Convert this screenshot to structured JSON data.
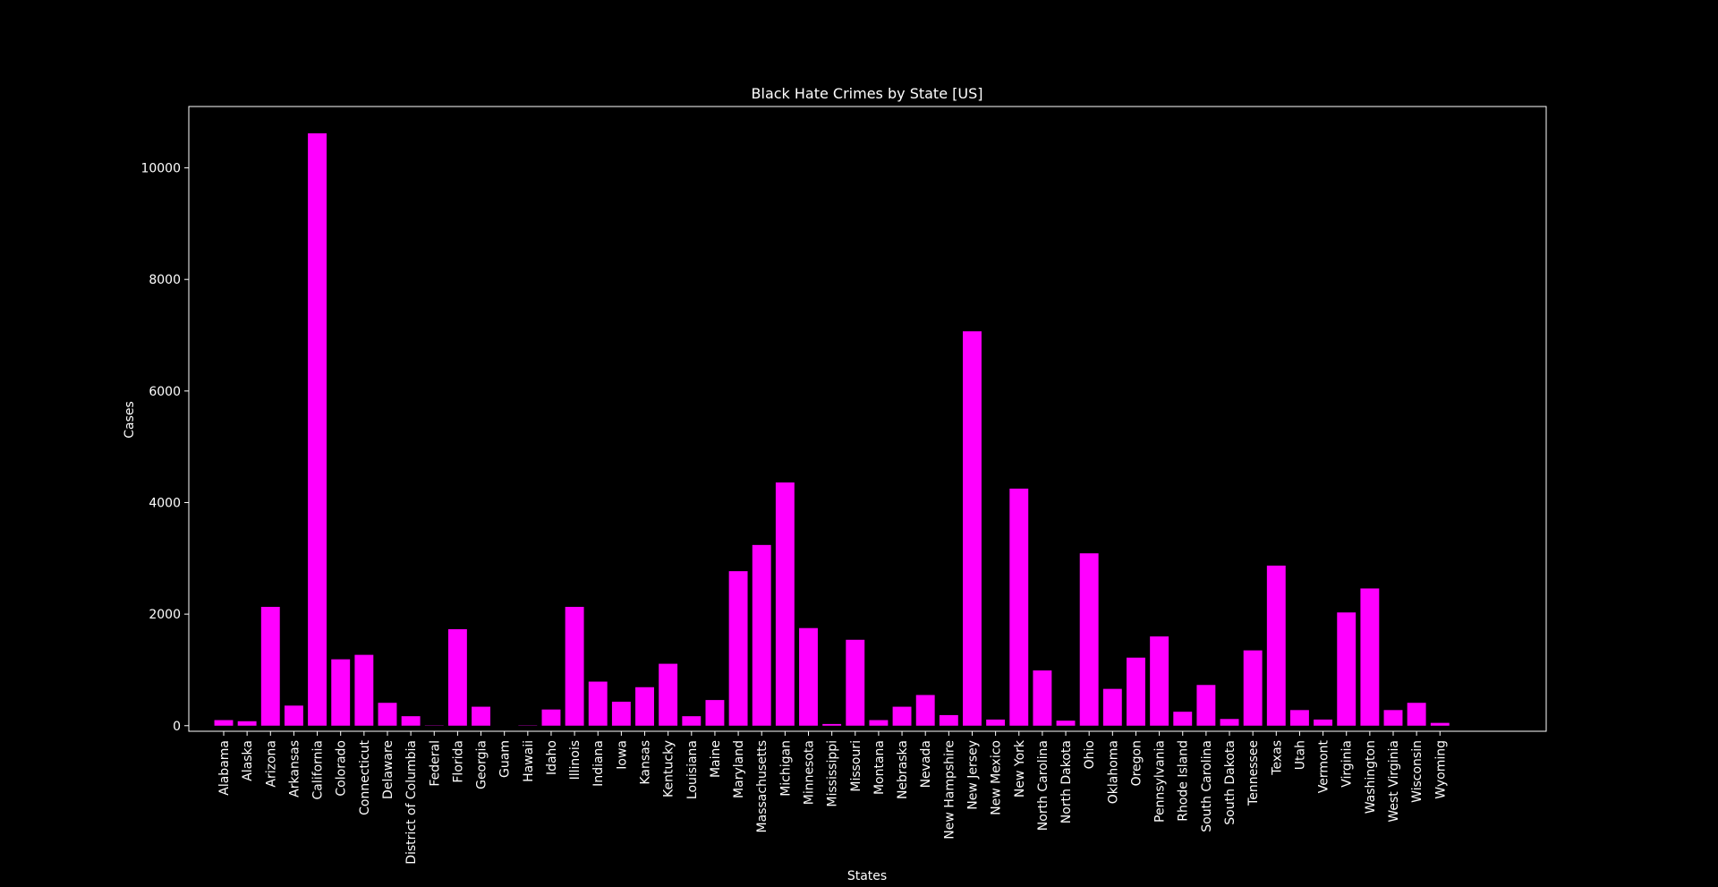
{
  "chart_data": {
    "type": "bar",
    "title": "Black Hate Crimes by State [US]",
    "xlabel": "States",
    "ylabel": "Cases",
    "ylim": [
      -100,
      11100
    ],
    "yticks": [
      0,
      2000,
      4000,
      6000,
      8000,
      10000
    ],
    "grid": false,
    "legend": "none",
    "categories": [
      "Alabama",
      "Alaska",
      "Arizona",
      "Arkansas",
      "California",
      "Colorado",
      "Connecticut",
      "Delaware",
      "District of Columbia",
      "Federal",
      "Florida",
      "Georgia",
      "Guam",
      "Hawaii",
      "Idaho",
      "Illinois",
      "Indiana",
      "Iowa",
      "Kansas",
      "Kentucky",
      "Louisiana",
      "Maine",
      "Maryland",
      "Massachusetts",
      "Michigan",
      "Minnesota",
      "Mississippi",
      "Missouri",
      "Montana",
      "Nebraska",
      "Nevada",
      "New Hampshire",
      "New Jersey",
      "New Mexico",
      "New York",
      "North Carolina",
      "North Dakota",
      "Ohio",
      "Oklahoma",
      "Oregon",
      "Pennsylvania",
      "Rhode Island",
      "South Carolina",
      "South Dakota",
      "Tennessee",
      "Texas",
      "Utah",
      "Vermont",
      "Virginia",
      "Washington",
      "West Virginia",
      "Wisconsin",
      "Wyoming"
    ],
    "values": [
      100,
      80,
      2130,
      360,
      10620,
      1190,
      1270,
      410,
      170,
      5,
      1730,
      340,
      0,
      5,
      290,
      2130,
      790,
      430,
      690,
      1110,
      170,
      460,
      2770,
      3240,
      4360,
      1750,
      30,
      1540,
      100,
      340,
      550,
      190,
      7070,
      110,
      4250,
      990,
      90,
      3090,
      660,
      1220,
      1600,
      250,
      730,
      120,
      1350,
      2870,
      280,
      110,
      2030,
      2460,
      280,
      410,
      50
    ],
    "colors": {
      "background": "#000000",
      "bar": "#ff00ff",
      "axes": "#ffffff",
      "text": "#ffffff"
    }
  }
}
